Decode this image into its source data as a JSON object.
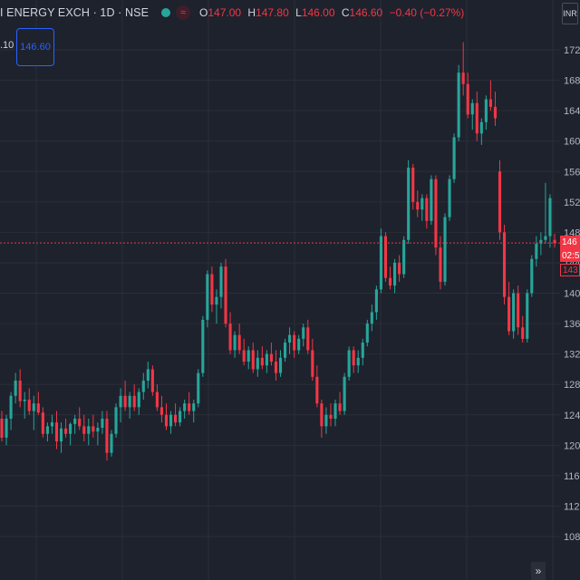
{
  "header": {
    "symbol": "I ENERGY EXCH · 1D · NSE",
    "open_label": "O",
    "open": "147.00",
    "high_label": "H",
    "high": "147.80",
    "low_label": "L",
    "low": "146.00",
    "close_label": "C",
    "close": "146.60",
    "change": "−0.40 (−0.27%)"
  },
  "sub_value": ".10",
  "price_box": "146.60",
  "currency": "INR",
  "last_price_tag": "146",
  "countdown_tag": "02:5",
  "low_tag": "143",
  "scroll_icon": "»",
  "colors": {
    "up": "#26a69a",
    "down": "#f23645",
    "bg": "#1e222d",
    "grid": "#2a2e39"
  },
  "chart_data": {
    "type": "candlestick",
    "y_axis_ticks": [
      "172",
      "168",
      "164",
      "160",
      "156",
      "152",
      "148",
      "144",
      "140",
      "136",
      "132",
      "128",
      "124",
      "120",
      "116",
      "112",
      "108"
    ],
    "ylim": [
      106,
      174
    ],
    "last_price": 146.6,
    "ohlc": [
      [
        123.5,
        124.5,
        120.5,
        121.0
      ],
      [
        121,
        124.0,
        120.0,
        123.5
      ],
      [
        123.5,
        127.0,
        122.0,
        126.5
      ],
      [
        126.5,
        129.5,
        125.5,
        128.5
      ],
      [
        128.5,
        130.0,
        125.0,
        125.8
      ],
      [
        125.8,
        127.0,
        123.5,
        126.0
      ],
      [
        126,
        127.5,
        124.0,
        124.5
      ],
      [
        124.5,
        126.5,
        122.0,
        125.5
      ],
      [
        125.5,
        127.0,
        124.0,
        124.3
      ],
      [
        124.3,
        125.0,
        121.0,
        121.5
      ],
      [
        121.5,
        123.0,
        120.5,
        122.5
      ],
      [
        122.5,
        124.0,
        121.5,
        123.0
      ],
      [
        123,
        124.5,
        119.5,
        120.5
      ],
      [
        120.5,
        123.0,
        119.0,
        122.2
      ],
      [
        122.2,
        123.5,
        121.0,
        121.5
      ],
      [
        121.5,
        123.0,
        120.0,
        122.8
      ],
      [
        122.8,
        124.0,
        121.5,
        123.5
      ],
      [
        123.5,
        125.0,
        122.0,
        122.5
      ],
      [
        122.5,
        124.0,
        120.5,
        121.5
      ],
      [
        121.5,
        123.5,
        120.0,
        122.5
      ],
      [
        122.5,
        124.0,
        121.0,
        121.8
      ],
      [
        121.8,
        123.0,
        120.0,
        122.3
      ],
      [
        122.3,
        124.5,
        121.5,
        123.5
      ],
      [
        123.5,
        124.5,
        118.0,
        119.0
      ],
      [
        119,
        122.0,
        118.5,
        121.5
      ],
      [
        121.5,
        125.5,
        121.0,
        125.0
      ],
      [
        125,
        127.5,
        123.0,
        126.5
      ],
      [
        126.5,
        128.5,
        124.5,
        125.0
      ],
      [
        125,
        127.0,
        123.5,
        126.5
      ],
      [
        126.5,
        128.0,
        124.5,
        125.0
      ],
      [
        125,
        127.5,
        124.0,
        127.0
      ],
      [
        127,
        129.5,
        126.0,
        128.5
      ],
      [
        128.5,
        131.0,
        127.5,
        130.0
      ],
      [
        130,
        130.5,
        126.5,
        127.0
      ],
      [
        127,
        128.0,
        124.5,
        125.0
      ],
      [
        125,
        126.5,
        123.0,
        124.0
      ],
      [
        124,
        125.5,
        122.0,
        122.5
      ],
      [
        122.5,
        124.5,
        121.5,
        124.0
      ],
      [
        124,
        125.5,
        122.5,
        123.0
      ],
      [
        123,
        125.0,
        122.5,
        124.5
      ],
      [
        124.5,
        126.0,
        123.5,
        125.5
      ],
      [
        125.5,
        127.0,
        124.0,
        124.5
      ],
      [
        124.5,
        126.0,
        123.0,
        125.5
      ],
      [
        125.5,
        130.0,
        125.0,
        129.5
      ],
      [
        129.5,
        137.0,
        129.0,
        136.5
      ],
      [
        136.5,
        143.0,
        135.5,
        142.5
      ],
      [
        142.5,
        143.5,
        137.5,
        138.5
      ],
      [
        138.5,
        140.5,
        136.0,
        139.5
      ],
      [
        139.5,
        144.0,
        138.0,
        143.5
      ],
      [
        143.5,
        144.5,
        135.5,
        136.0
      ],
      [
        136,
        137.5,
        132.0,
        132.5
      ],
      [
        132.5,
        135.0,
        131.5,
        134.5
      ],
      [
        134.5,
        136.0,
        132.0,
        132.5
      ],
      [
        132.5,
        134.0,
        130.5,
        131.0
      ],
      [
        131,
        133.0,
        130.0,
        132.5
      ],
      [
        132.5,
        133.5,
        129.5,
        130.0
      ],
      [
        130,
        132.5,
        129.0,
        131.5
      ],
      [
        131.5,
        133.0,
        130.0,
        130.5
      ],
      [
        130.5,
        132.5,
        129.5,
        132.0
      ],
      [
        132,
        133.5,
        130.5,
        131.0
      ],
      [
        131,
        132.5,
        128.5,
        129.5
      ],
      [
        129.5,
        132.5,
        129.0,
        131.5
      ],
      [
        131.5,
        134.0,
        131.0,
        133.5
      ],
      [
        133.5,
        135.5,
        132.0,
        134.5
      ],
      [
        134.5,
        135.0,
        131.5,
        132.5
      ],
      [
        132.5,
        134.5,
        132.0,
        134.0
      ],
      [
        134,
        136.0,
        133.0,
        135.5
      ],
      [
        135.5,
        136.5,
        132.0,
        132.5
      ],
      [
        132.5,
        134.0,
        128.5,
        129.0
      ],
      [
        129,
        130.5,
        125.0,
        125.5
      ],
      [
        125.5,
        126.0,
        121.0,
        122.5
      ],
      [
        122.5,
        125.0,
        121.5,
        124.0
      ],
      [
        124,
        125.5,
        122.5,
        123.5
      ],
      [
        123.5,
        126.0,
        122.5,
        125.5
      ],
      [
        125.5,
        127.0,
        124.0,
        124.5
      ],
      [
        124.5,
        129.5,
        124.0,
        129.0
      ],
      [
        129,
        133.0,
        128.5,
        132.5
      ],
      [
        132.5,
        133.0,
        129.5,
        130.5
      ],
      [
        130.5,
        132.5,
        129.5,
        131.5
      ],
      [
        131.5,
        134.0,
        130.5,
        133.5
      ],
      [
        133.5,
        136.5,
        133.0,
        136.0
      ],
      [
        136,
        138.5,
        135.0,
        137.5
      ],
      [
        137.5,
        141.0,
        136.5,
        140.5
      ],
      [
        140.5,
        148.5,
        140.0,
        147.5
      ],
      [
        147.5,
        148.0,
        141.5,
        142.0
      ],
      [
        142,
        143.5,
        140.5,
        141.0
      ],
      [
        141,
        144.5,
        140.0,
        144.0
      ],
      [
        144,
        145.0,
        141.5,
        142.5
      ],
      [
        142.5,
        147.5,
        142.0,
        147.0
      ],
      [
        147,
        157.5,
        146.5,
        156.5
      ],
      [
        156.5,
        157.0,
        151.0,
        152.0
      ],
      [
        152,
        153.5,
        150.0,
        151.0
      ],
      [
        151,
        153.0,
        149.5,
        152.5
      ],
      [
        152.5,
        153.0,
        148.5,
        149.5
      ],
      [
        149.5,
        155.5,
        149.0,
        155.0
      ],
      [
        155,
        155.5,
        145.0,
        146.0
      ],
      [
        146,
        147.5,
        140.5,
        141.5
      ],
      [
        141.5,
        150.5,
        141.0,
        150.0
      ],
      [
        150,
        155.5,
        149.5,
        155.0
      ],
      [
        155,
        161.0,
        154.5,
        160.5
      ],
      [
        160.5,
        170.0,
        160.0,
        169.0
      ],
      [
        169,
        173.0,
        166.0,
        167.5
      ],
      [
        167.5,
        169.0,
        163.0,
        163.5
      ],
      [
        163.5,
        165.5,
        161.5,
        165.0
      ],
      [
        165,
        166.5,
        160.0,
        161.0
      ],
      [
        161,
        163.0,
        159.5,
        162.5
      ],
      [
        162.5,
        166.0,
        161.5,
        165.5
      ],
      [
        165.5,
        168.0,
        164.0,
        164.5
      ],
      [
        164.5,
        166.5,
        162.0,
        163.0
      ],
      [
        156,
        157.5,
        147.0,
        148.0
      ],
      [
        148,
        149.0,
        138.5,
        139.5
      ],
      [
        139.5,
        141.5,
        134.5,
        135.0
      ],
      [
        135,
        140.5,
        134.0,
        140.0
      ],
      [
        140,
        141.0,
        134.5,
        135.5
      ],
      [
        135.5,
        137.0,
        133.5,
        134.0
      ],
      [
        134,
        140.5,
        133.5,
        140.0
      ],
      [
        140,
        145.0,
        139.5,
        144.5
      ],
      [
        144.5,
        147.5,
        143.5,
        146.5
      ],
      [
        146.5,
        148.0,
        145.0,
        147.0
      ],
      [
        147,
        154.5,
        146.5,
        147.5
      ],
      [
        147.5,
        153.0,
        146.0,
        152.5
      ],
      [
        147.0,
        147.8,
        146.0,
        146.6
      ]
    ]
  }
}
